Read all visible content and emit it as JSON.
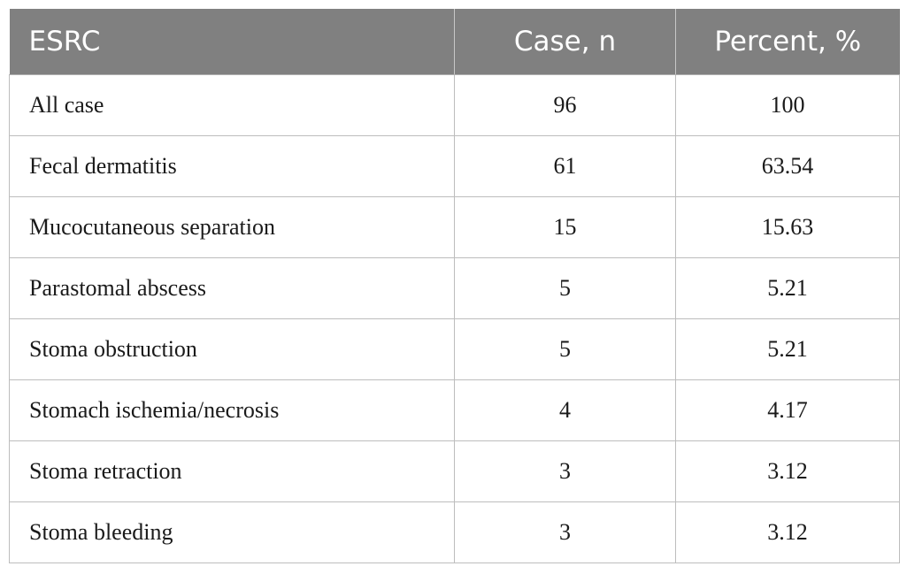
{
  "table": {
    "headers": [
      "ESRC",
      "Case, n",
      "Percent, %"
    ],
    "rows": [
      [
        "All case",
        "96",
        "100"
      ],
      [
        "Fecal dermatitis",
        "61",
        "63.54"
      ],
      [
        "Mucocutaneous separation",
        "15",
        "15.63"
      ],
      [
        "Parastomal abscess",
        "5",
        "5.21"
      ],
      [
        "Stoma obstruction",
        "5",
        "5.21"
      ],
      [
        "Stomach ischemia/necrosis",
        "4",
        "4.17"
      ],
      [
        "Stoma retraction",
        "3",
        "3.12"
      ],
      [
        "Stoma bleeding",
        "3",
        "3.12"
      ]
    ],
    "header_bg": "#808080",
    "header_text_color": "#ffffff",
    "border_color": "#bdbdbd"
  }
}
